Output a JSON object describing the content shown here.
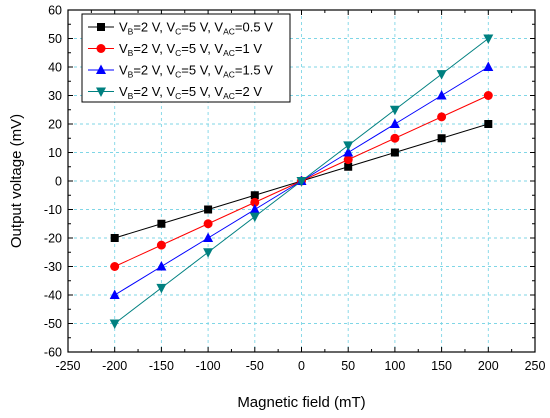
{
  "chart_data": {
    "type": "line",
    "xlabel": "Magnetic field (mT)",
    "ylabel": "Output voltage (mV)",
    "xlim": [
      -250,
      250
    ],
    "ylim": [
      -60,
      60
    ],
    "xticks": [
      -250,
      -200,
      -150,
      -100,
      -50,
      0,
      50,
      100,
      150,
      200,
      250
    ],
    "yticks": [
      -60,
      -50,
      -40,
      -30,
      -20,
      -10,
      0,
      10,
      20,
      30,
      40,
      50,
      60
    ],
    "grid": true,
    "legend_position": "top-left",
    "x": [
      -200,
      -150,
      -100,
      -50,
      0,
      50,
      100,
      150,
      200
    ],
    "series": [
      {
        "legend": {
          "vb": "2 V",
          "vc": "5 V",
          "vac": "0.5 V"
        },
        "color": "#000000",
        "marker": "square",
        "values": [
          -20,
          -15,
          -10,
          -5,
          0,
          5,
          10,
          15,
          20
        ]
      },
      {
        "legend": {
          "vb": "2 V",
          "vc": "5 V",
          "vac": "1 V"
        },
        "color": "#ff0000",
        "marker": "circle",
        "values": [
          -30,
          -22.5,
          -15,
          -7.5,
          0,
          7.5,
          15,
          22.5,
          30
        ]
      },
      {
        "legend": {
          "vb": "2 V",
          "vc": "5 V",
          "vac": "1.5 V"
        },
        "color": "#0000ff",
        "marker": "triangle-up",
        "values": [
          -40,
          -30,
          -20,
          -10,
          0,
          10,
          20,
          30,
          40
        ]
      },
      {
        "legend": {
          "vb": "2 V",
          "vc": "5 V",
          "vac": "2 V"
        },
        "color": "#008080",
        "marker": "triangle-down",
        "values": [
          -50,
          -37.5,
          -25,
          -12.5,
          0,
          12.5,
          25,
          37.5,
          50
        ]
      }
    ]
  }
}
